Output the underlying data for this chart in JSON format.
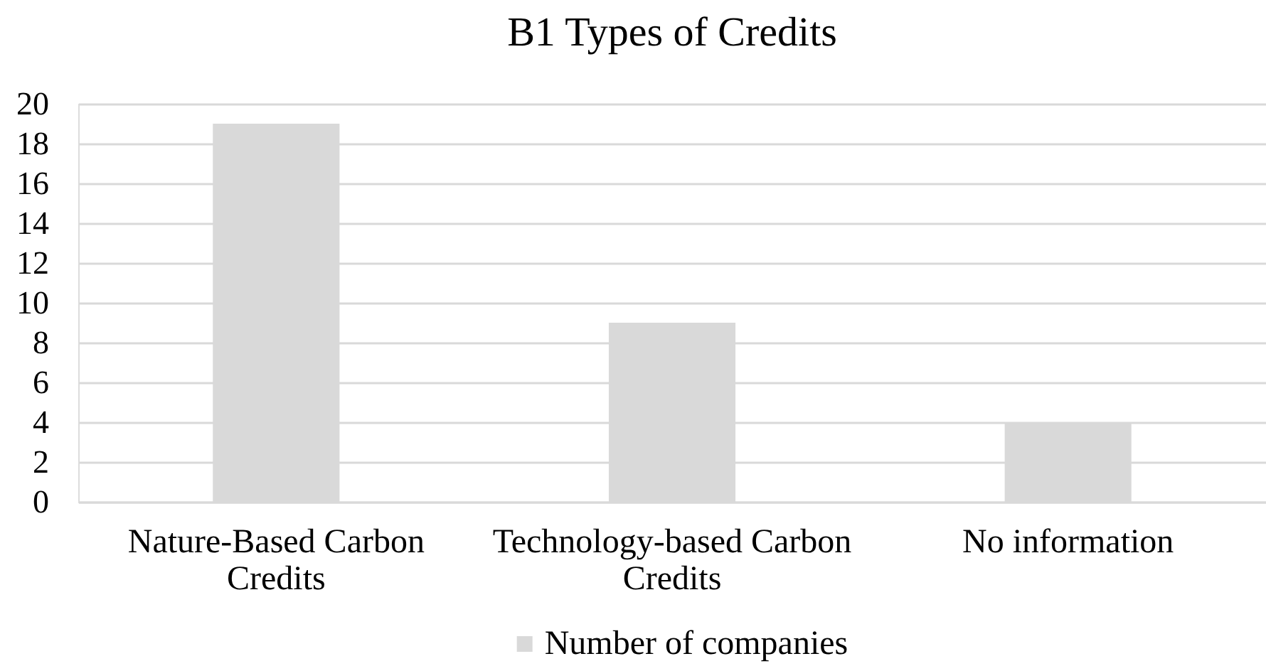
{
  "chart_data": {
    "type": "bar",
    "title": "B1 Types of Credits",
    "categories": [
      "Nature-Based Carbon Credits",
      "Technology-based Carbon Credits",
      "No information"
    ],
    "series": [
      {
        "name": "Number of companies",
        "color": "#d9d9d9",
        "values": [
          19,
          9,
          4
        ]
      }
    ],
    "ylim": [
      0,
      20
    ],
    "yticks": [
      0,
      2,
      4,
      6,
      8,
      10,
      12,
      14,
      16,
      18,
      20
    ],
    "grid": "y",
    "legend": "bottom"
  }
}
